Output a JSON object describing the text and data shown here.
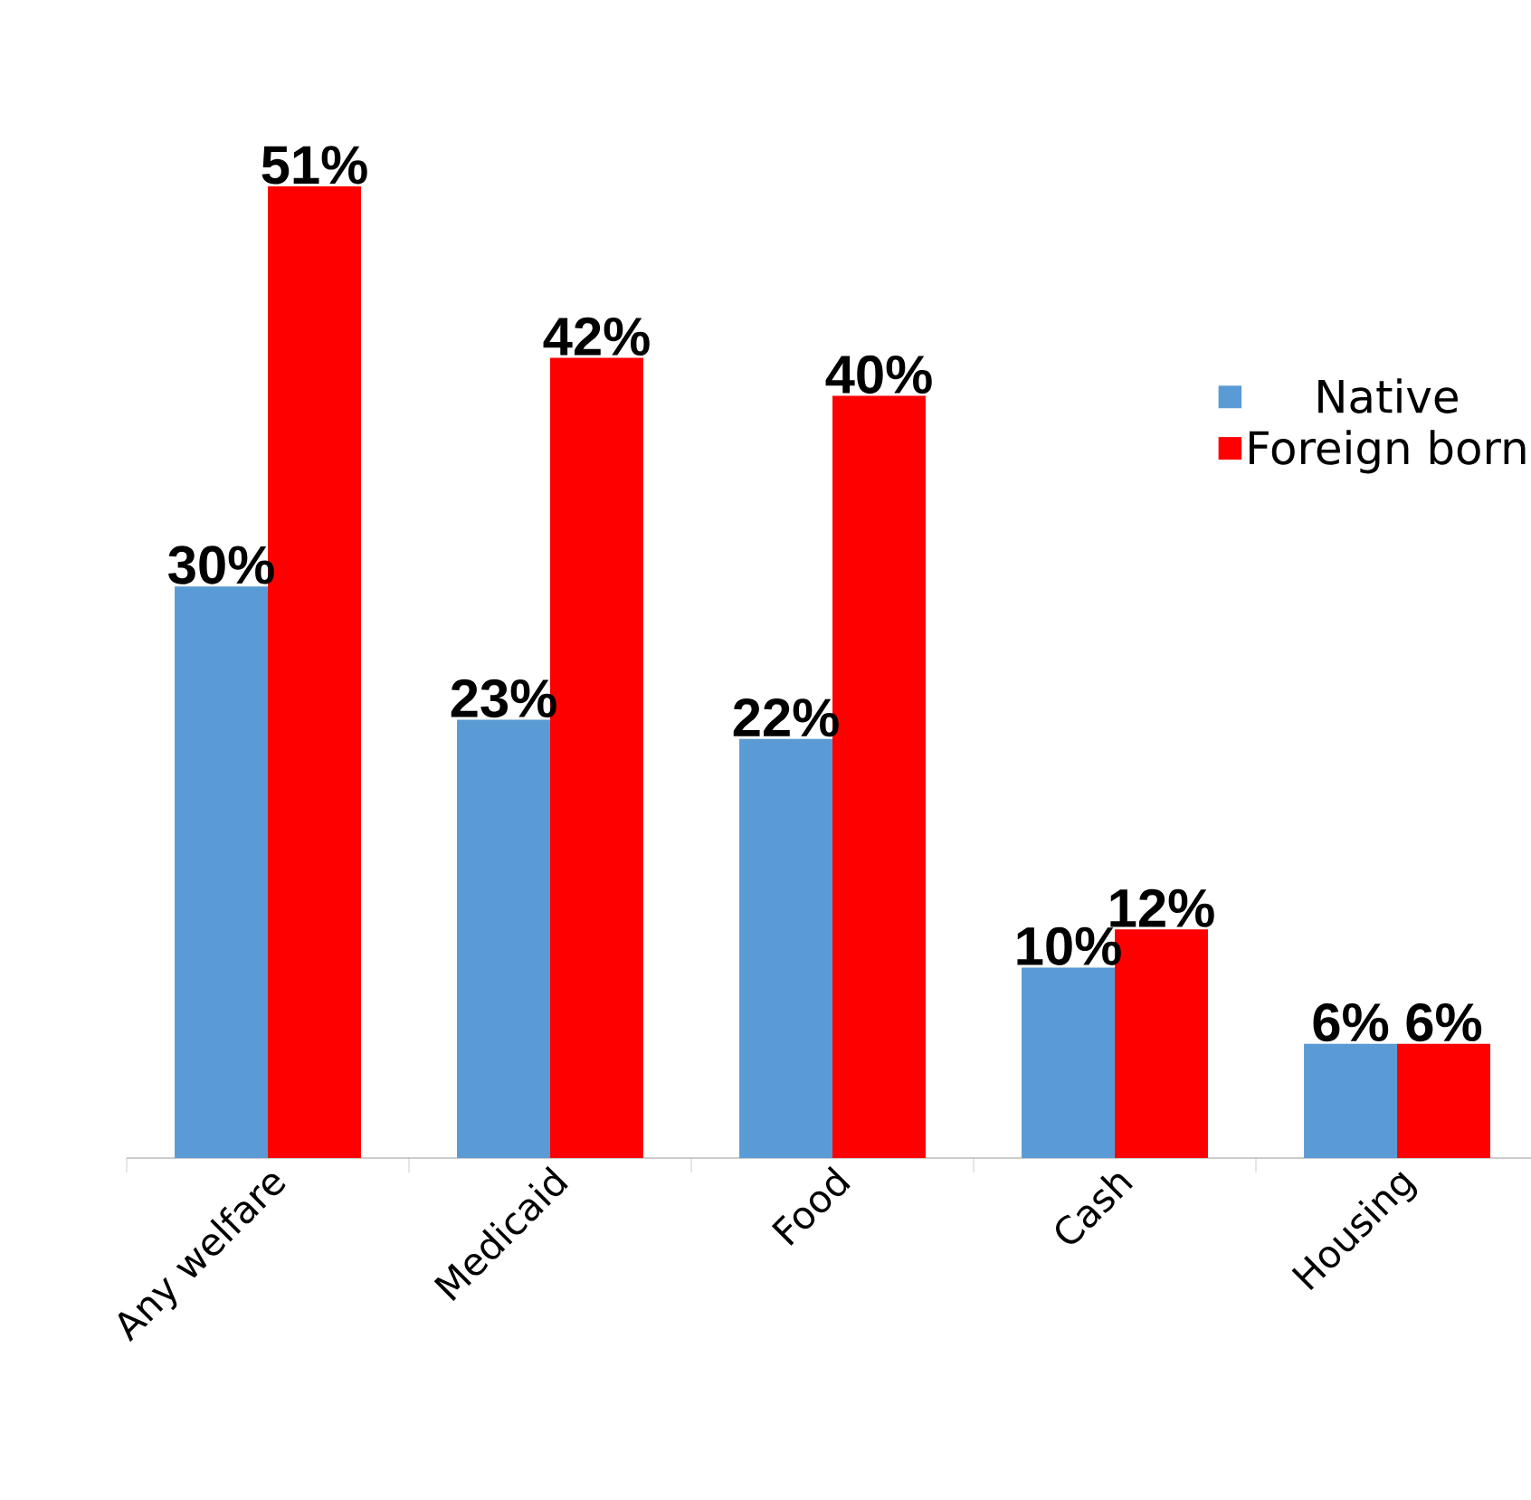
{
  "chart_data": {
    "type": "bar",
    "categories": [
      "Any welfare",
      "Medicaid",
      "Food",
      "Cash",
      "Housing"
    ],
    "series": [
      {
        "name": "Native",
        "color": "#5b9bd5",
        "values": [
          30,
          23,
          22,
          10,
          6
        ],
        "value_labels": [
          "30%",
          "23%",
          "22%",
          "10%",
          "6%"
        ]
      },
      {
        "name": "Foreign born",
        "color": "#ff0000",
        "values": [
          51,
          42,
          40,
          12,
          6
        ],
        "value_labels": [
          "51%",
          "42%",
          "40%",
          "12%",
          "6%"
        ]
      }
    ],
    "legend": "right",
    "grid": false,
    "tick_labels": "x"
  }
}
